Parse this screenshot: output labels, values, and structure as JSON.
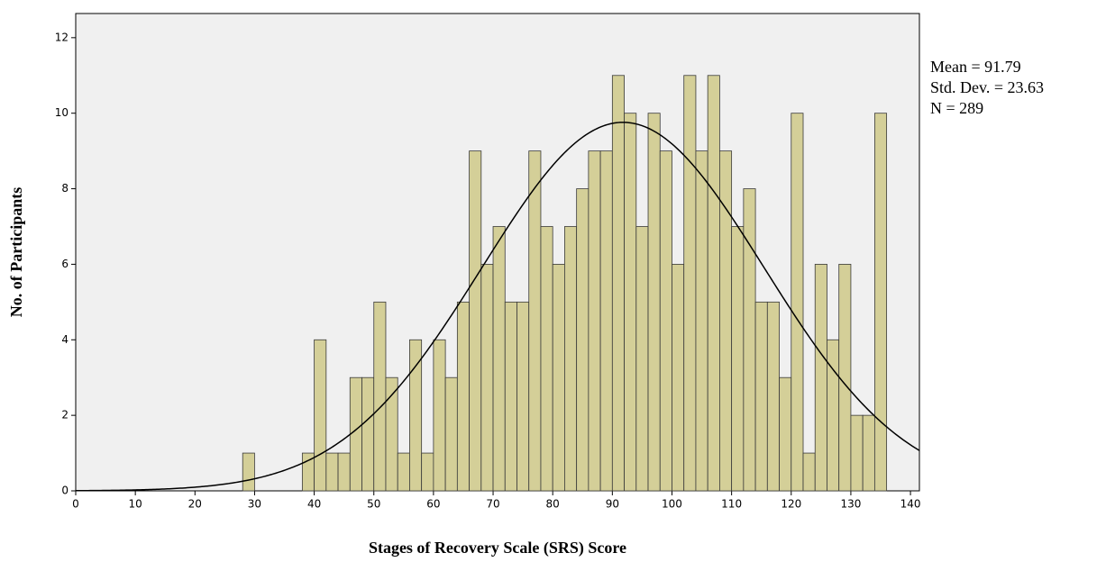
{
  "chart_data": {
    "type": "histogram",
    "x_label": "Stages of Recovery Scale (SRS) Score",
    "y_label": "No. of Participants",
    "bins": [
      28,
      30,
      32,
      34,
      36,
      38,
      40,
      42,
      44,
      46,
      48,
      50,
      52,
      54,
      56,
      58,
      60,
      62,
      64,
      66,
      68,
      70,
      72,
      74,
      76,
      78,
      80,
      82,
      84,
      86,
      88,
      90,
      92,
      94,
      96,
      98,
      100,
      102,
      104,
      106,
      108,
      110,
      112,
      114,
      116,
      118,
      120,
      122,
      124,
      126,
      128,
      130,
      132,
      134,
      136
    ],
    "values": [
      1,
      0,
      0,
      0,
      0,
      1,
      4,
      1,
      1,
      3,
      3,
      5,
      3,
      1,
      4,
      1,
      4,
      3,
      5,
      9,
      6,
      7,
      5,
      5,
      9,
      7,
      6,
      7,
      8,
      9,
      9,
      11,
      10,
      7,
      10,
      9,
      6,
      11,
      9,
      11,
      9,
      7,
      8,
      5,
      5,
      3,
      10,
      1,
      6,
      4,
      6,
      2,
      2,
      10
    ],
    "color": "#d4cf98",
    "xlim": [
      0,
      141.5
    ],
    "ylim": [
      0,
      12.64
    ],
    "xticks": [
      0,
      10,
      20,
      30,
      40,
      50,
      60,
      70,
      80,
      90,
      100,
      110,
      120,
      130,
      140
    ],
    "yticks": [
      0,
      2,
      4,
      6,
      8,
      10,
      12
    ],
    "stats": [
      {
        "value": 91.79,
        "label": "Mean = 91.79"
      },
      {
        "value": 23.63,
        "label": "Std. Dev. = 23.63"
      },
      {
        "value": 289,
        "label": "N = 289"
      }
    ]
  }
}
